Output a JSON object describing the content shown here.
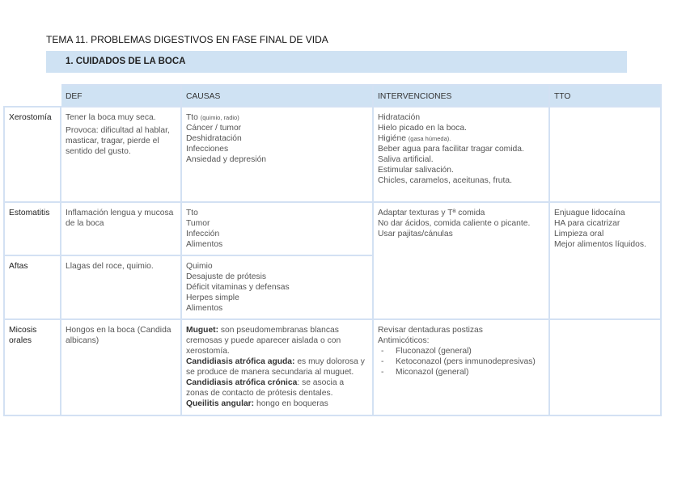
{
  "title": "TEMA 11. PROBLEMAS DIGESTIVOS EN FASE FINAL DE VIDA",
  "section": "1.  CUIDADOS DE LA BOCA",
  "headers": [
    "DEF",
    "CAUSAS",
    "INTERVENCIONES",
    "TTO"
  ],
  "rows": {
    "xerostomia": {
      "label": "Xerostomía",
      "def": [
        "Tener la boca muy seca.",
        "Provoca: dificultad al hablar, masticar, tragar, pierde el sentido del gusto."
      ],
      "causas_tto": "Tto",
      "causas_tto_note": "(quimio, radio)",
      "causas": [
        "Cáncer / tumor",
        "Deshidratación",
        "Infecciones",
        "Ansiedad y depresión"
      ],
      "interv": [
        "Hidratación",
        "Hielo picado en la boca."
      ],
      "interv_higiene": "Higiéne",
      "interv_higiene_note": "(gasa húmeda).",
      "interv2": [
        "Beber agua para facilitar tragar comida.",
        "Saliva artificial.",
        "Estimular salivación.",
        "Chicles, caramelos, aceitunas, fruta."
      ]
    },
    "estomatitis": {
      "label": "Estomatitis",
      "def": "Inflamación lengua y mucosa de la boca",
      "causas": [
        "Tto",
        "Tumor",
        "Infección",
        "Alimentos"
      ]
    },
    "estomatitis_aftas_interv": [
      "Adaptar texturas y Tª comida",
      "No dar ácidos, comida caliente o picante.",
      "Usar pajitas/cánulas"
    ],
    "estomatitis_aftas_tto": [
      "Enjuague lidocaína",
      "HA para cicatrizar",
      "Limpieza oral",
      "Mejor alimentos líquidos."
    ],
    "aftas": {
      "label": "Aftas",
      "def": "Llagas del roce, quimio.",
      "causas": [
        "Quimio",
        "Desajuste de prótesis",
        "Déficit vitaminas y defensas",
        "Herpes simple",
        "Alimentos"
      ]
    },
    "micosis": {
      "label": "Micosis orales",
      "def": "Hongos en la boca (Candida albicans)",
      "causas": [
        {
          "term": "Muguet:",
          "text": " son pseudomembranas blancas cremosas y puede aparecer aislada o con xerostomía."
        },
        {
          "term": "Candidiasis atrófica aguda:",
          "text": " es muy dolorosa y se produce de manera secundaria al muguet."
        },
        {
          "term": "Candidiasis atrófica crónica",
          "text": ": se asocia a zonas de contacto de prótesis dentales."
        },
        {
          "term": "Queilitis angular:",
          "text": " hongo en boqueras"
        }
      ],
      "interv": [
        "Revisar dentaduras postizas",
        "Antimicóticos:"
      ],
      "interv_list": [
        "Fluconazol (general)",
        "Ketoconazol (pers inmunodepresivas)",
        "Miconazol (general)"
      ]
    }
  }
}
